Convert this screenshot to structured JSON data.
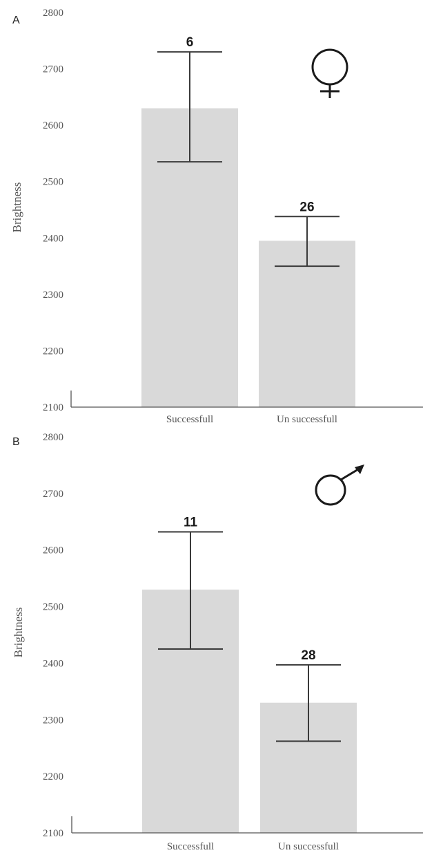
{
  "chart_data": [
    {
      "type": "bar",
      "panel_label": "A",
      "symbol": "female-symbol",
      "ylabel": "Brightness",
      "ylim": [
        2100,
        2800
      ],
      "yticks": [
        "2100",
        "2200",
        "2300",
        "2400",
        "2500",
        "2600",
        "2700",
        "2800"
      ],
      "categories": [
        "Successfull",
        "Un successfull"
      ],
      "values": [
        2630,
        2395
      ],
      "error_low": [
        2535,
        2350
      ],
      "error_high": [
        2730,
        2438
      ],
      "n_labels": [
        "6",
        "26"
      ],
      "bar_color": "#d9d9d9"
    },
    {
      "type": "bar",
      "panel_label": "B",
      "symbol": "male-symbol",
      "ylabel": "Brightness",
      "ylim": [
        2100,
        2800
      ],
      "yticks": [
        "2100",
        "2200",
        "2300",
        "2400",
        "2500",
        "2600",
        "2700",
        "2800"
      ],
      "categories": [
        "Successfull",
        "Un successfull"
      ],
      "values": [
        2530,
        2330
      ],
      "error_low": [
        2425,
        2262
      ],
      "error_high": [
        2632,
        2397
      ],
      "n_labels": [
        "11",
        "28"
      ],
      "bar_color": "#d9d9d9"
    }
  ]
}
